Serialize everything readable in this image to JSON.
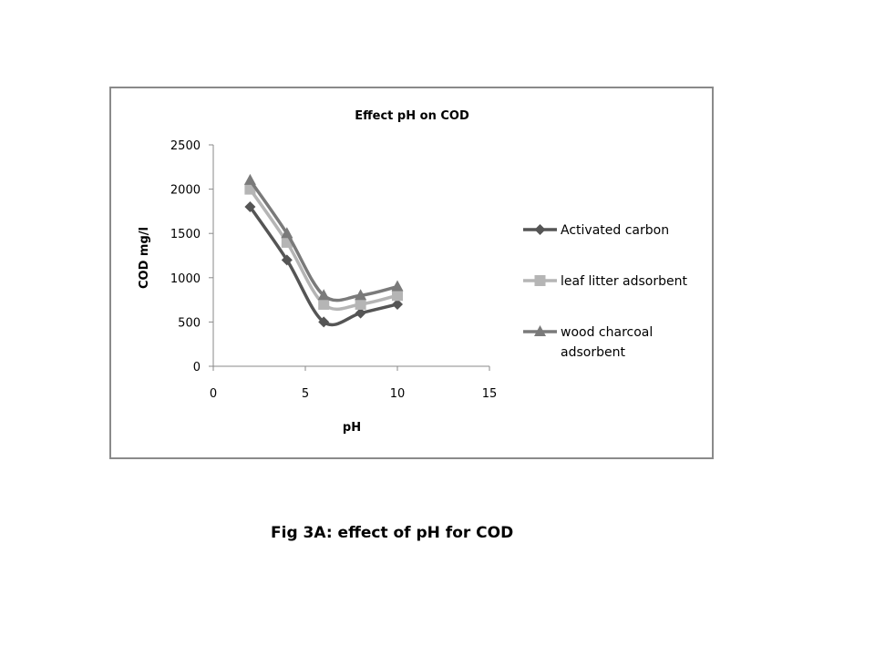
{
  "chart_data": {
    "type": "line",
    "title": "Effect pH on COD",
    "xlabel": "pH",
    "ylabel": "COD mg/l",
    "xlim": [
      0,
      15
    ],
    "ylim": [
      0,
      2500
    ],
    "xticks": [
      0,
      5,
      10,
      15
    ],
    "yticks": [
      0,
      500,
      1000,
      1500,
      2000,
      2500
    ],
    "grid": false,
    "legend_position": "right",
    "series": [
      {
        "name": "Activated carbon",
        "marker": "diamond",
        "color": "#555555",
        "x": [
          2,
          4,
          6,
          8,
          10
        ],
        "y": [
          1800,
          1200,
          500,
          600,
          700
        ]
      },
      {
        "name": "leaf litter adsorbent",
        "marker": "square",
        "color": "#b5b5b5",
        "x": [
          2,
          4,
          6,
          8,
          10
        ],
        "y": [
          2000,
          1400,
          700,
          700,
          800
        ]
      },
      {
        "name": "wood charcoal adsorbent",
        "marker": "triangle",
        "color": "#7a7a7a",
        "x": [
          2,
          4,
          6,
          8,
          10
        ],
        "y": [
          2100,
          1500,
          800,
          800,
          900
        ]
      }
    ]
  },
  "caption": "Fig 3A: effect of pH for COD"
}
